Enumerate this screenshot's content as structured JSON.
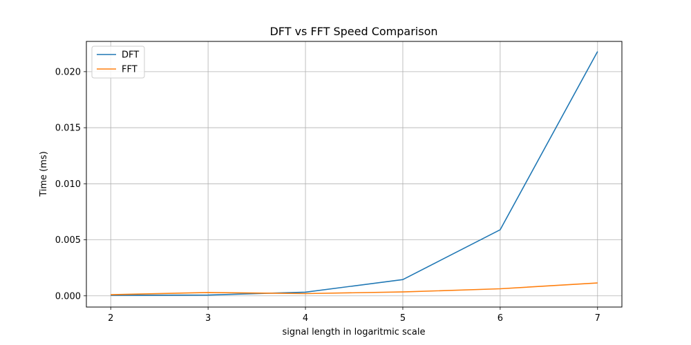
{
  "chart_data": {
    "type": "line",
    "title": "DFT vs FFT Speed Comparison",
    "xlabel": "signal length in logaritmic scale",
    "ylabel": "Time (ms)",
    "x": [
      2,
      3,
      4,
      5,
      6,
      7
    ],
    "xticks": [
      "2",
      "3",
      "4",
      "5",
      "6",
      "7"
    ],
    "yticks": [
      "0.000",
      "0.005",
      "0.010",
      "0.015",
      "0.020"
    ],
    "ytick_values": [
      0,
      0.005,
      0.01,
      0.015,
      0.02
    ],
    "xlim": [
      1.75,
      7.25
    ],
    "ylim": [
      -0.001,
      0.0227
    ],
    "grid": true,
    "legend_position": "top-left",
    "series": [
      {
        "name": "DFT",
        "color": "#1f77b4",
        "values": [
          5e-05,
          7e-05,
          0.00033,
          0.00145,
          0.0059,
          0.0218
        ]
      },
      {
        "name": "FFT",
        "color": "#ff7f0e",
        "values": [
          0.0001,
          0.0003,
          0.0002,
          0.00035,
          0.00063,
          0.00115
        ]
      }
    ]
  }
}
